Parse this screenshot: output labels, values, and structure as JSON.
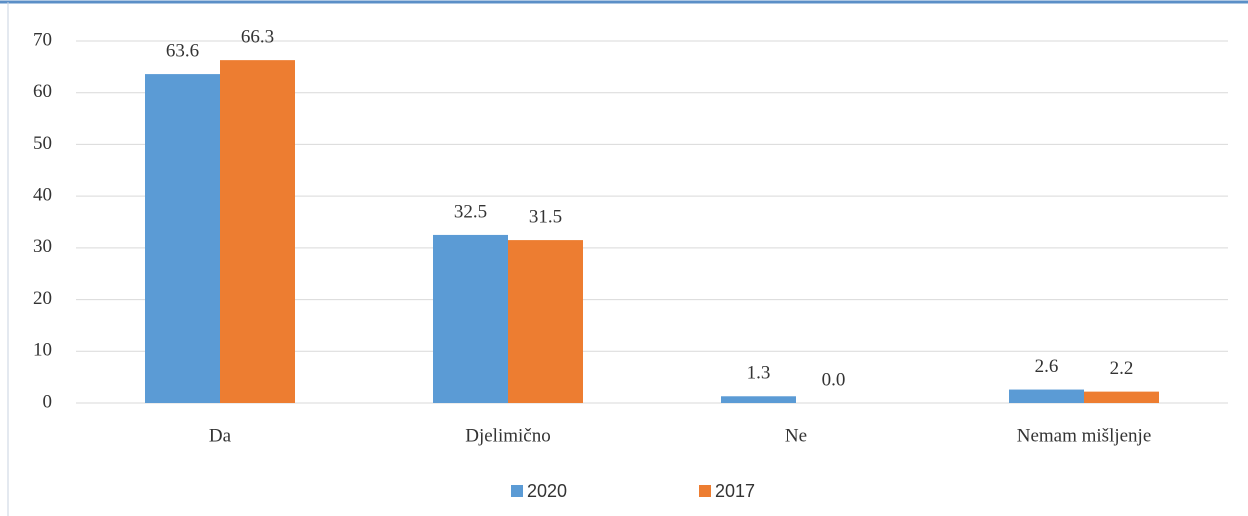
{
  "chart_data": {
    "type": "bar",
    "categories": [
      "Da",
      "Djelimično",
      "Ne",
      "Nemam mišljenje"
    ],
    "series": [
      {
        "name": "2020",
        "color": "#5b9bd5",
        "values": [
          63.6,
          32.5,
          1.3,
          2.6
        ],
        "value_labels": [
          "63.6",
          "32.5",
          "1.3",
          "2.6"
        ]
      },
      {
        "name": "2017",
        "color": "#ed7d31",
        "values": [
          66.3,
          31.5,
          0,
          2.2
        ],
        "value_labels": [
          "66.3",
          "31.5",
          "0.0",
          "2.2"
        ]
      }
    ],
    "ylim": [
      0,
      70
    ],
    "yticks": [
      0,
      10,
      20,
      30,
      40,
      50,
      60,
      70
    ],
    "grid": true,
    "legend": "bottom"
  }
}
